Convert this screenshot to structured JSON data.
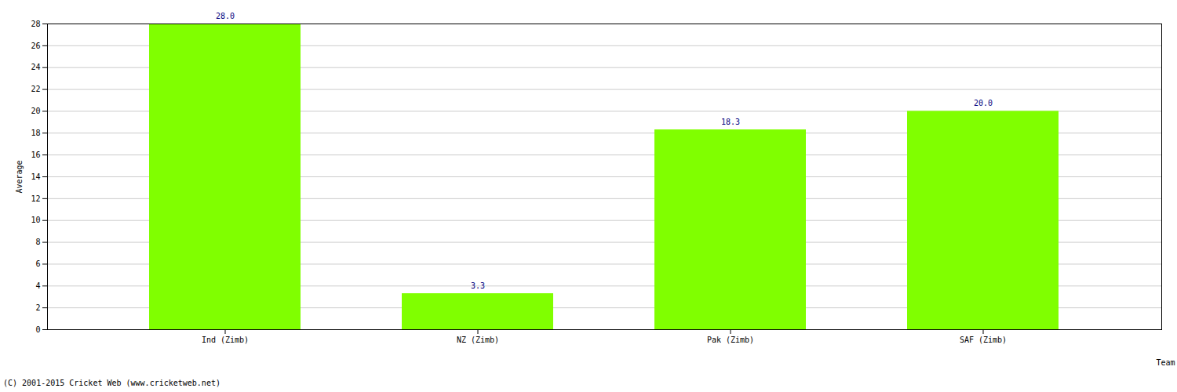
{
  "chart_data": {
    "type": "bar",
    "categories": [
      "Ind (Zimb)",
      "NZ (Zimb)",
      "Pak (Zimb)",
      "SAF (Zimb)"
    ],
    "values": [
      28.0,
      3.3,
      18.3,
      20.0
    ],
    "value_labels": [
      "28.0",
      "3.3",
      "18.3",
      "20.0"
    ],
    "data_labels": true,
    "color": "#80ff00",
    "x_label": "Team",
    "y_label": "Average",
    "ylim": [
      0,
      28
    ],
    "yticks": [
      0,
      2,
      4,
      6,
      8,
      10,
      12,
      14,
      16,
      18,
      20,
      22,
      24,
      26,
      28
    ],
    "grid": true,
    "caption": "(C) 2001-2015 Cricket Web (www.cricketweb.net)"
  }
}
